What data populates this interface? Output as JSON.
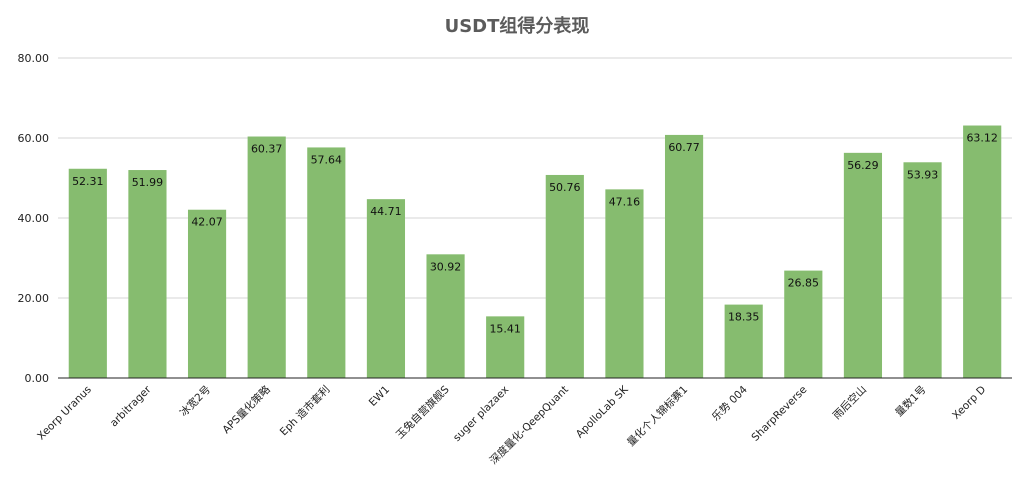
{
  "chart_data": {
    "type": "bar",
    "title": "USDT组得分表现",
    "xlabel": "",
    "ylabel": "",
    "ylim": [
      0,
      80
    ],
    "yticks": [
      "0.00",
      "20.00",
      "40.00",
      "60.00",
      "80.00"
    ],
    "grid": true,
    "bar_color": "#86bc6f",
    "categories": [
      "Xeorp Uranus",
      "arbitrager",
      "冰宽2号",
      "APS量化策略",
      "Eph 造市套利",
      "EW1",
      "玉兔自营旗舰S",
      "suger plazaex",
      "深度量化-QeepQuant",
      "ApolloLab SK",
      "量化个人锦标赛1",
      "乐势 004",
      "SharpReverse",
      "雨后空山",
      "量数1号",
      "Xeorp D"
    ],
    "values": [
      52.31,
      51.99,
      42.07,
      60.37,
      57.64,
      44.71,
      30.92,
      15.41,
      50.76,
      47.16,
      60.77,
      18.35,
      26.85,
      56.29,
      53.93,
      63.12
    ],
    "data_labels": [
      "52.31",
      "51.99",
      "42.07",
      "60.37",
      "57.64",
      "44.71",
      "30.92",
      "15.41",
      "50.76",
      "47.16",
      "60.77",
      "18.35",
      "26.85",
      "56.29",
      "53.93",
      "63.12"
    ]
  }
}
